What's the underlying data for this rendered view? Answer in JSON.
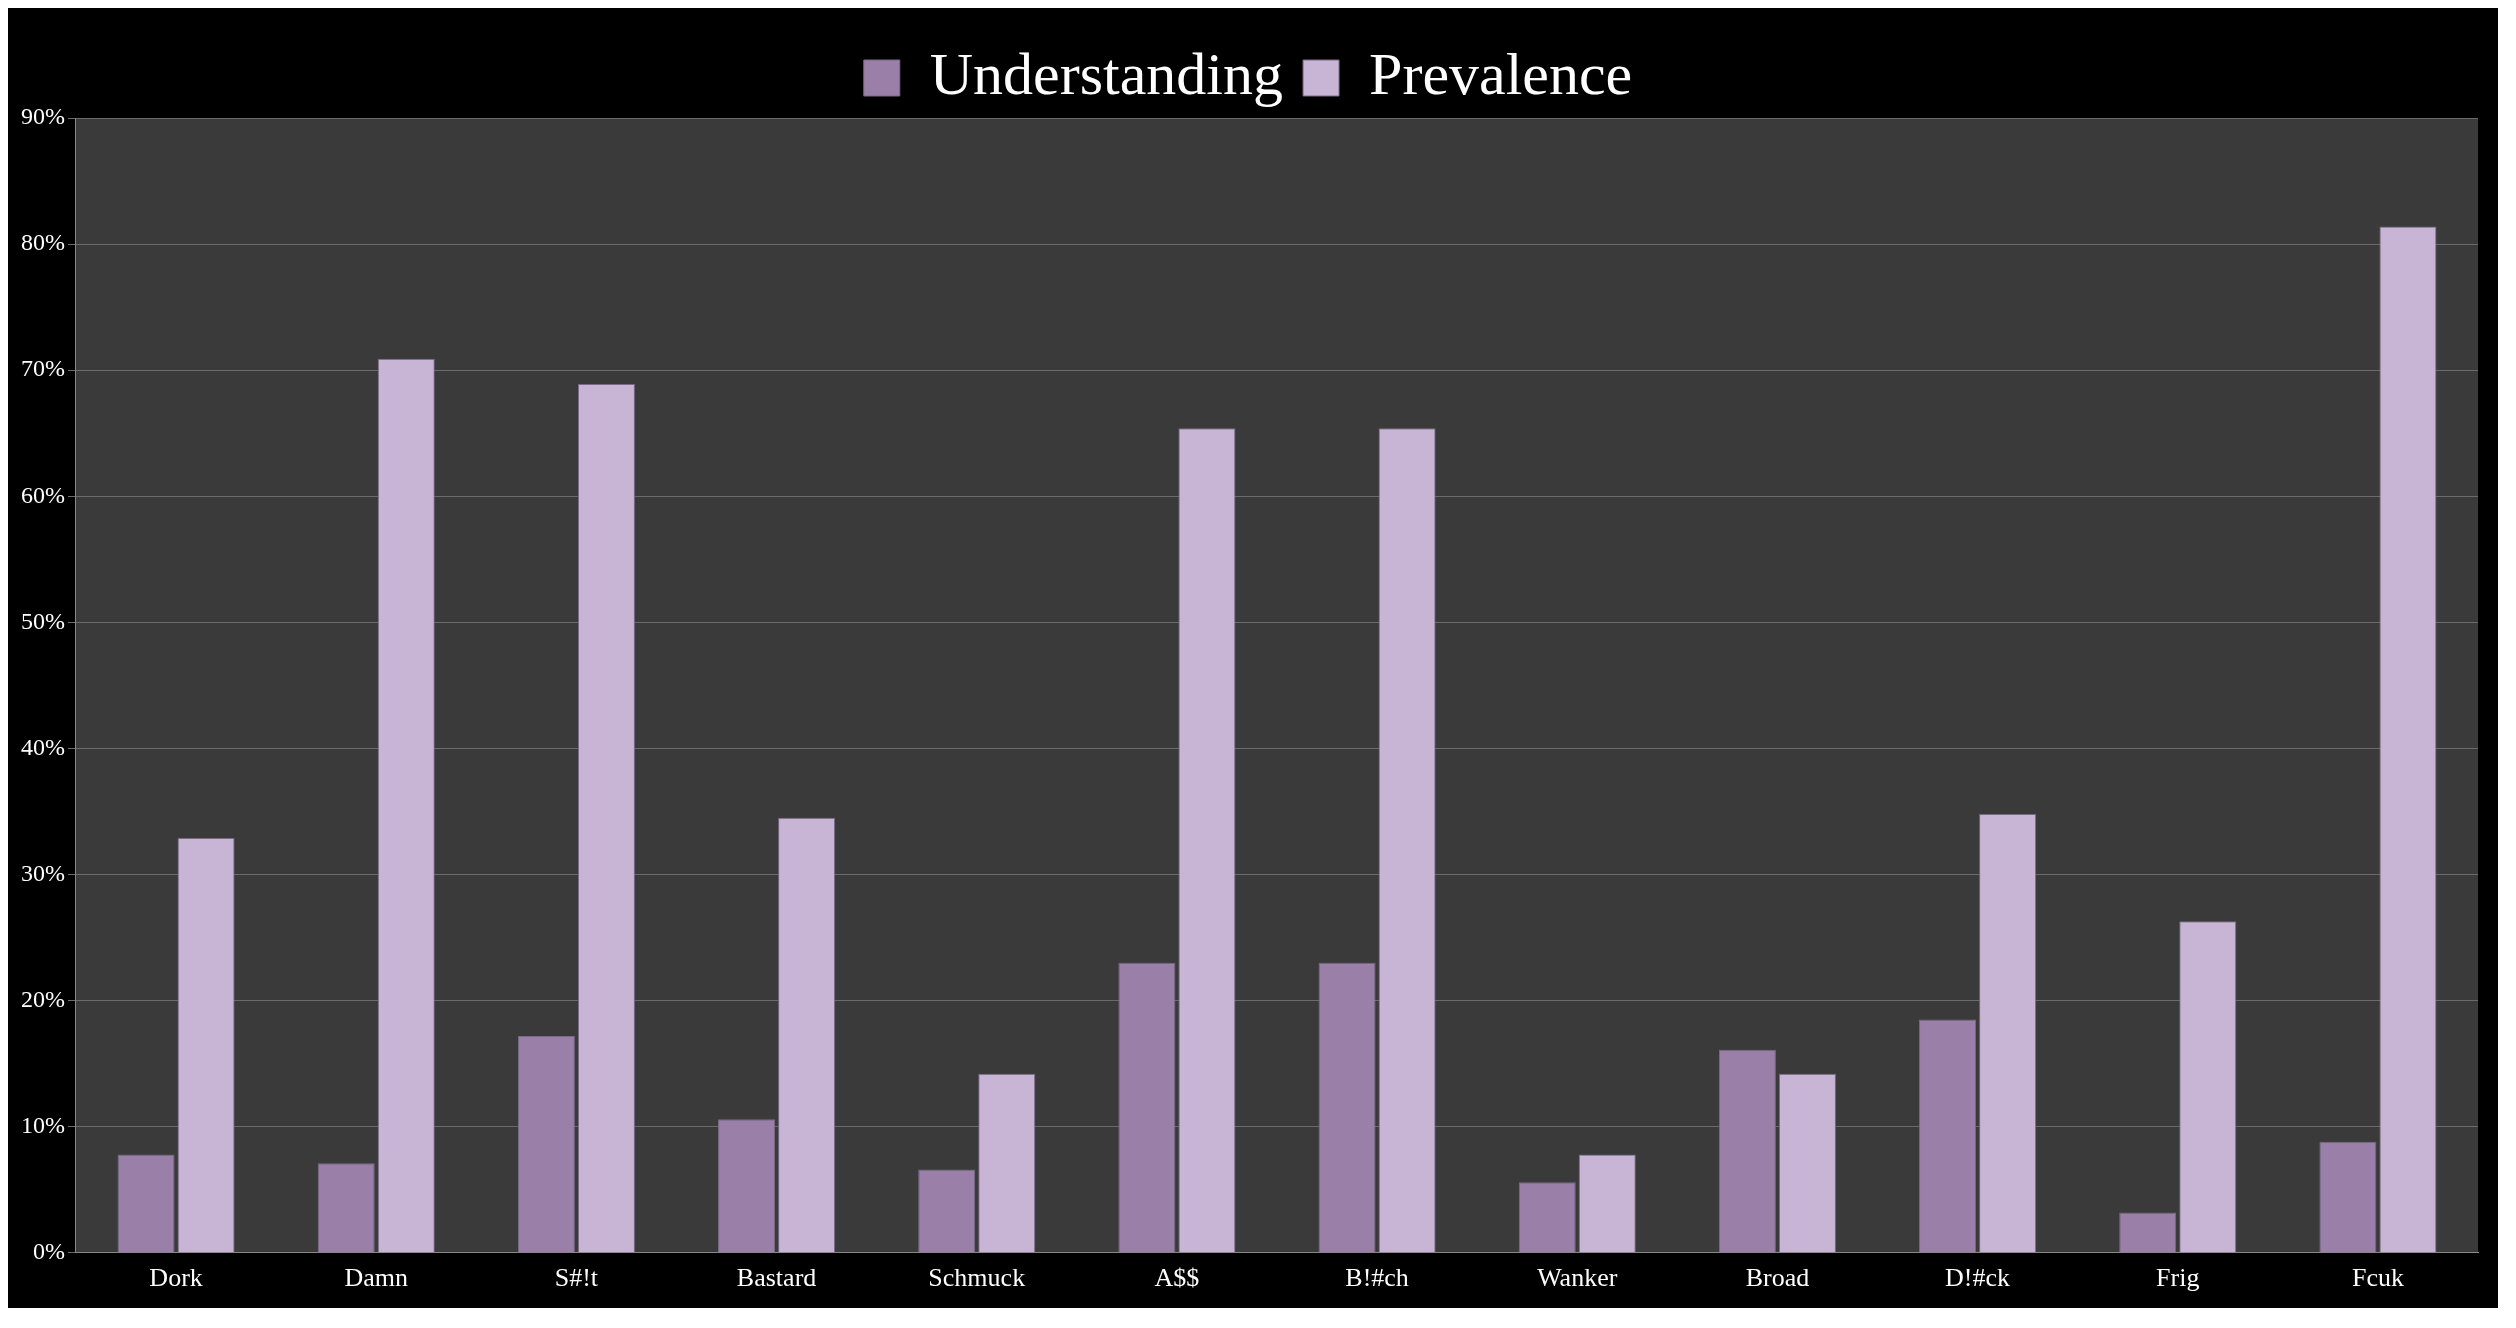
{
  "chart_data": {
    "type": "bar",
    "categories": [
      "Dork",
      "Damn",
      "S#!t",
      "Bastard",
      "Schmuck",
      "A$$",
      "B!#ch",
      "Wanker",
      "Broad",
      "D!#ck",
      "Frig",
      "Fcuk"
    ],
    "series": [
      {
        "name": "Understanding",
        "color": "#9a80a8",
        "values": [
          7.8,
          7.1,
          17.2,
          10.6,
          6.6,
          23,
          23,
          5.6,
          16.1,
          18.5,
          3.2,
          8.8
        ]
      },
      {
        "name": "Prevalence",
        "color": "#c8b4d4",
        "values": [
          32.9,
          70.9,
          68.9,
          34.5,
          14.2,
          65.4,
          65.4,
          7.8,
          14.2,
          34.8,
          26.3,
          81.4
        ]
      }
    ],
    "ylim": [
      0,
      90
    ],
    "yticks": [
      {
        "value": 0,
        "label": "0%"
      },
      {
        "value": 10,
        "label": "10%"
      },
      {
        "value": 20,
        "label": "20%"
      },
      {
        "value": 30,
        "label": "30%"
      },
      {
        "value": 40,
        "label": "40%"
      },
      {
        "value": 50,
        "label": "50%"
      },
      {
        "value": 60,
        "label": "60%"
      },
      {
        "value": 70,
        "label": "70%"
      },
      {
        "value": 80,
        "label": "80%"
      },
      {
        "value": 90,
        "label": "90%"
      }
    ],
    "grid": "y",
    "legend": "top"
  }
}
